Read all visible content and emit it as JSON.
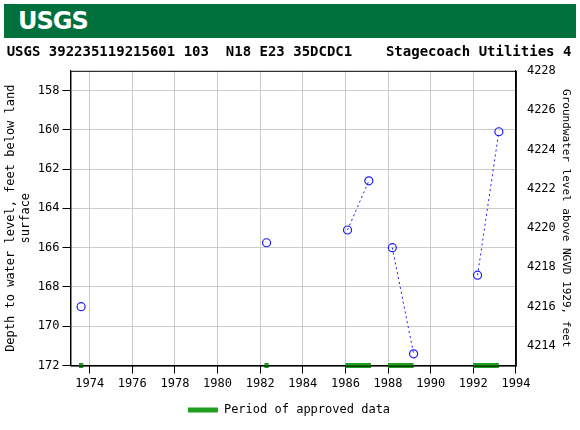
{
  "header": {
    "logo_text": "USGS"
  },
  "chart_data": {
    "type": "line",
    "title": "USGS 392235119215601 103  N18 E23 35DCDC1    Stagecoach Utilities 4",
    "y_label": [
      "Depth to water level, feet below land",
      "surface"
    ],
    "y2_label": "Groundwater level above NGVD 1929, feet",
    "xlim": [
      1973.1,
      1994
    ],
    "xticks": [
      1974,
      1976,
      1978,
      1980,
      1982,
      1984,
      1986,
      1988,
      1990,
      1992,
      1994
    ],
    "ylim": [
      172,
      157
    ],
    "yticks": [
      158,
      160,
      162,
      164,
      166,
      168,
      170,
      172
    ],
    "y2lim": [
      4213,
      4228
    ],
    "y2ticks": [
      4214,
      4216,
      4218,
      4220,
      4222,
      4224,
      4226,
      4228
    ],
    "grid": true,
    "legend": "bottom",
    "series": [
      {
        "color": "#1a1aff",
        "marker": "circle",
        "line_style": "dotted",
        "x": [
          1973.6,
          null,
          1982.3,
          null,
          1986.1,
          1987.1,
          null,
          1988.2,
          1989.2,
          null,
          1992.2,
          1993.2
        ],
        "values": [
          169.0,
          null,
          165.75,
          null,
          165.1,
          162.6,
          null,
          166.0,
          171.4,
          null,
          167.4,
          160.1
        ]
      },
      {
        "name": "Period of approved data",
        "color": "#1f9e1f",
        "marker": "none",
        "line_style": "solid",
        "x": [
          1973.5,
          1973.7,
          null,
          1982.2,
          1982.4,
          null,
          1986.0,
          1987.2,
          null,
          1988.0,
          1989.2,
          null,
          1992.0,
          1993.2
        ],
        "values": [
          172,
          172,
          null,
          172,
          172,
          null,
          172,
          172,
          null,
          172,
          172,
          null,
          172,
          172
        ]
      }
    ]
  }
}
